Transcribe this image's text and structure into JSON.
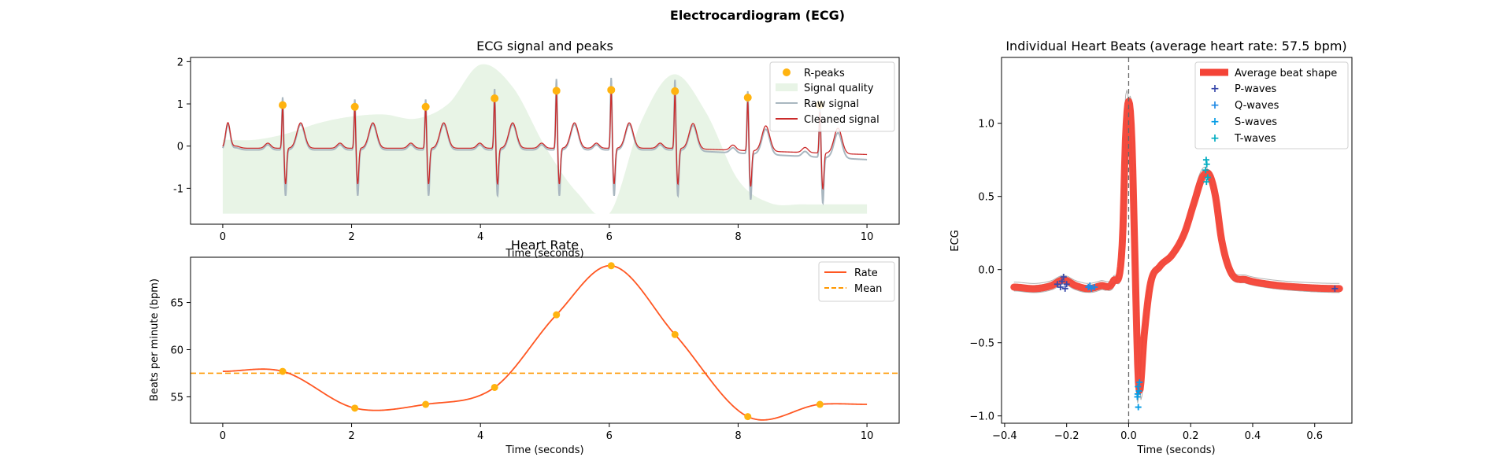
{
  "figure": {
    "suptitle": "Electrocardiogram (ECG)"
  },
  "chart_data": [
    {
      "type": "line",
      "title": "ECG signal and peaks",
      "xlabel": "Time (seconds)",
      "ylabel": "",
      "xlim": [
        -0.5,
        10.5
      ],
      "ylim": [
        -1.85,
        2.1
      ],
      "xticks": [
        0,
        2,
        4,
        6,
        8,
        10
      ],
      "yticks": [
        -1,
        0,
        1,
        2
      ],
      "grid": false,
      "legend_position": "top-right",
      "legend": [
        "R-peaks",
        "Signal quality",
        "Raw signal",
        "Cleaned signal"
      ],
      "r_peaks": {
        "name": "R-peaks",
        "color": "#FFB30F",
        "x": [
          0.93,
          2.05,
          3.15,
          4.22,
          5.18,
          6.03,
          7.02,
          8.15,
          9.27
        ],
        "y": [
          0.97,
          0.93,
          0.93,
          1.13,
          1.31,
          1.33,
          1.3,
          1.15,
          0.97
        ]
      },
      "signal_quality": {
        "name": "Signal quality",
        "color": "#E8F4E6",
        "x": [
          0,
          0.5,
          1,
          1.5,
          2,
          2.5,
          3,
          3.5,
          4,
          4.5,
          5,
          5.5,
          6,
          6.5,
          7,
          7.5,
          8,
          8.5,
          9,
          9.5,
          10
        ],
        "y": [
          0.15,
          0.15,
          0.3,
          0.55,
          0.7,
          0.75,
          0.65,
          1.0,
          1.93,
          1.4,
          0.0,
          -1.1,
          -1.6,
          0.6,
          1.7,
          0.8,
          -0.8,
          -1.35,
          -1.38,
          -1.38,
          -1.38
        ],
        "baseline": -1.6
      },
      "raw_signal": {
        "name": "Raw signal",
        "color": "#A9B7C0",
        "offset": -0.04,
        "spike_gain": 1.28,
        "drift_end": -0.23
      },
      "cleaned_signal": {
        "name": "Cleaned signal",
        "color": "#CB2B2B",
        "drift_end": -0.15
      }
    },
    {
      "type": "line",
      "title": "Heart Rate",
      "xlabel": "Time (seconds)",
      "ylabel": "Beats per minute (bpm)",
      "xlim": [
        -0.5,
        10.5
      ],
      "ylim": [
        52.2,
        69.8
      ],
      "xticks": [
        0,
        2,
        4,
        6,
        8,
        10
      ],
      "yticks": [
        55,
        60,
        65
      ],
      "grid": false,
      "legend_position": "top-right",
      "legend": [
        "Rate",
        "Mean"
      ],
      "series": [
        {
          "name": "Rate",
          "color": "#FF5722",
          "x": [
            0,
            0.93,
            2.05,
            3.15,
            4.22,
            5.18,
            6.03,
            7.02,
            8.15,
            9.27,
            10
          ],
          "y": [
            57.7,
            57.7,
            53.8,
            54.2,
            56.0,
            63.7,
            68.9,
            61.6,
            52.9,
            54.2,
            54.2
          ]
        },
        {
          "name": "Mean",
          "color": "#FF9800",
          "style": "dashed",
          "y": 57.5
        }
      ],
      "markers": {
        "color": "#FFB30F",
        "x": [
          0.93,
          2.05,
          3.15,
          4.22,
          5.18,
          6.03,
          7.02,
          8.15,
          9.27
        ],
        "y": [
          57.7,
          53.8,
          54.2,
          56.0,
          63.7,
          68.9,
          61.6,
          52.9,
          54.2
        ]
      }
    },
    {
      "type": "line",
      "title": "Individual Heart Beats (average heart rate: 57.5 bpm)",
      "xlabel": "Time (seconds)",
      "ylabel": "ECG",
      "xlim": [
        -0.41,
        0.72
      ],
      "ylim": [
        -1.05,
        1.45
      ],
      "xticks": [
        -0.4,
        -0.2,
        0.0,
        0.2,
        0.4,
        0.6
      ],
      "xticklabels": [
        "−0.4",
        "−0.2",
        "0.0",
        "0.2",
        "0.4",
        "0.6"
      ],
      "yticks": [
        -1.0,
        -0.5,
        0.0,
        0.5,
        1.0
      ],
      "yticklabels": [
        "−1.0",
        "−0.5",
        "0.0",
        "0.5",
        "1.0"
      ],
      "vline_x": 0.0,
      "grid": false,
      "legend_position": "top-right",
      "legend": [
        "Average beat shape",
        "P-waves",
        "Q-waves",
        "S-waves",
        "T-waves"
      ],
      "average_beat": {
        "name": "Average beat shape",
        "color": "#F44336",
        "x": [
          -0.37,
          -0.3,
          -0.25,
          -0.21,
          -0.17,
          -0.13,
          -0.09,
          -0.05,
          -0.02,
          -0.01,
          0.0,
          0.01,
          0.02,
          0.03,
          0.035,
          0.05,
          0.07,
          0.1,
          0.14,
          0.18,
          0.21,
          0.24,
          0.26,
          0.28,
          0.3,
          0.33,
          0.38,
          0.45,
          0.55,
          0.68
        ],
        "y": [
          -0.12,
          -0.13,
          -0.11,
          -0.07,
          -0.11,
          -0.13,
          -0.11,
          -0.08,
          0.2,
          0.9,
          1.15,
          0.9,
          0.1,
          -0.7,
          -0.83,
          -0.45,
          -0.1,
          0.02,
          0.1,
          0.25,
          0.45,
          0.64,
          0.65,
          0.5,
          0.2,
          -0.02,
          -0.07,
          -0.1,
          -0.12,
          -0.13
        ]
      },
      "p_waves": {
        "name": "P-waves",
        "color": "#3949AB",
        "x": [
          -0.23,
          -0.22,
          -0.21,
          -0.205,
          -0.2,
          -0.215,
          0.665
        ],
        "y": [
          -0.1,
          -0.12,
          -0.05,
          -0.13,
          -0.1,
          -0.08,
          -0.13
        ]
      },
      "q_waves": {
        "name": "Q-waves",
        "color": "#1E88E5",
        "x": [
          -0.13,
          -0.12,
          -0.11,
          -0.125
        ],
        "y": [
          -0.12,
          -0.13,
          -0.12,
          -0.11
        ]
      },
      "s_waves": {
        "name": "S-waves",
        "color": "#039BE5",
        "x": [
          0.03,
          0.033,
          0.028,
          0.031,
          0.035,
          0.029
        ],
        "y": [
          -0.8,
          -0.83,
          -0.87,
          -0.94,
          -0.77,
          -0.85
        ]
      },
      "t_waves": {
        "name": "T-waves",
        "color": "#00ACC1",
        "x": [
          0.25,
          0.252,
          0.248,
          0.255,
          0.251
        ],
        "y": [
          0.75,
          0.72,
          0.68,
          0.63,
          0.6
        ]
      }
    }
  ]
}
